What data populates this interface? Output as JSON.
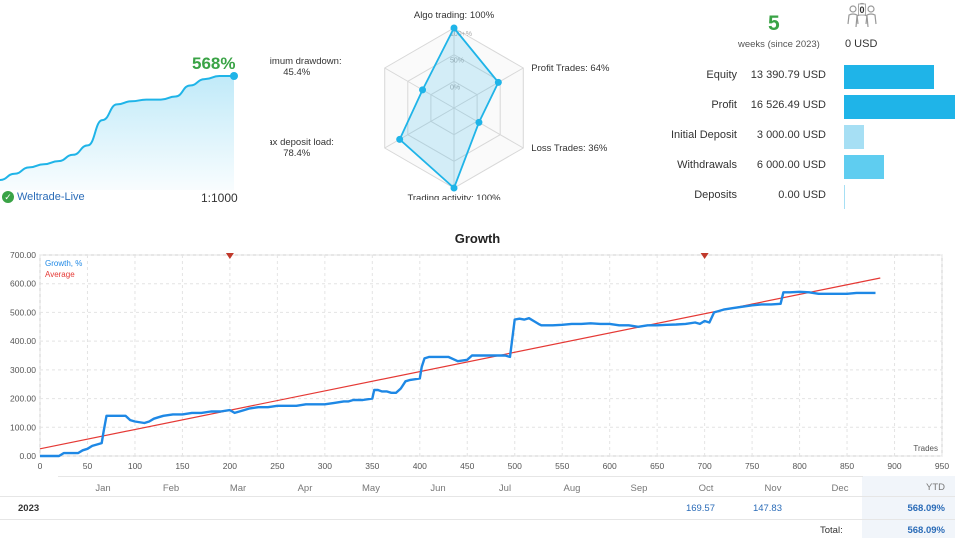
{
  "mini_chart": {
    "growth_label": "568%",
    "account": "Weltrade-Live",
    "leverage": "1:1000",
    "values": [
      0,
      20,
      40,
      50,
      60,
      80,
      110,
      190,
      240,
      250,
      255,
      255,
      265,
      300,
      320,
      330,
      330
    ]
  },
  "radar": {
    "axes": [
      {
        "label": "Algo trading: 100%",
        "value": 100
      },
      {
        "label": "Profit Trades: 64%",
        "value": 64
      },
      {
        "label": "Loss Trades: 36%",
        "value": 36
      },
      {
        "label": "Trading activity: 100%",
        "value": 100
      },
      {
        "label": "Max deposit load:",
        "label2": "78.4%",
        "value": 78.4
      },
      {
        "label": "Maximum drawdown:",
        "label2": "45.4%",
        "value": 45.4
      }
    ],
    "scale_labels": [
      "100+%",
      "50%",
      "0%"
    ]
  },
  "summary": {
    "weeks": "5",
    "weeks_label": "weeks (since 2023)",
    "subscribers_count": "0",
    "subscribers_amount": "0 USD"
  },
  "stats": [
    {
      "label": "Equity",
      "value": "13 390.79 USD",
      "amount": 13390.79,
      "color": "#1fb4e8"
    },
    {
      "label": "Profit",
      "value": "16 526.49 USD",
      "amount": 16526.49,
      "color": "#1fb4e8"
    },
    {
      "label": "Initial Deposit",
      "value": "3 000.00 USD",
      "amount": 3000.0,
      "color": "#a6dff4"
    },
    {
      "label": "Withdrawals",
      "value": "6 000.00 USD",
      "amount": 6000.0,
      "color": "#5fcdf0"
    },
    {
      "label": "Deposits",
      "value": "0.00 USD",
      "amount": 0.0,
      "color": "#a6dff4"
    }
  ],
  "chart_data": {
    "type": "line",
    "title": "Growth",
    "xlabel": "Trades",
    "ylabel": "",
    "xlim": [
      0,
      950
    ],
    "ylim": [
      0,
      700
    ],
    "xticks": [
      0,
      50,
      100,
      150,
      200,
      250,
      300,
      350,
      400,
      450,
      500,
      550,
      600,
      650,
      700,
      750,
      800,
      850,
      900,
      950
    ],
    "yticks": [
      "0.00",
      "100.00",
      "200.00",
      "300.00",
      "400.00",
      "500.00",
      "600.00",
      "700.00"
    ],
    "legend": [
      "Growth, %",
      "Average"
    ],
    "markers_x": [
      200,
      700
    ],
    "series": [
      {
        "name": "Growth, %",
        "color": "#1e88e5",
        "x": [
          0,
          20,
          25,
          40,
          45,
          50,
          55,
          60,
          65,
          67,
          70,
          75,
          90,
          95,
          100,
          110,
          115,
          120,
          125,
          130,
          140,
          150,
          160,
          170,
          180,
          190,
          200,
          205,
          210,
          215,
          220,
          230,
          240,
          250,
          260,
          270,
          280,
          290,
          300,
          310,
          320,
          325,
          330,
          340,
          350,
          352,
          356,
          360,
          365,
          370,
          375,
          380,
          385,
          390,
          400,
          402,
          405,
          410,
          412,
          420,
          430,
          440,
          450,
          455,
          460,
          470,
          480,
          490,
          495,
          500,
          505,
          510,
          515,
          520,
          525,
          528,
          535,
          540,
          550,
          560,
          570,
          580,
          590,
          600,
          610,
          620,
          630,
          640,
          650,
          660,
          670,
          680,
          690,
          695,
          700,
          705,
          710,
          715,
          720,
          730,
          740,
          750,
          760,
          770,
          780,
          783,
          790,
          800,
          810,
          820,
          830,
          840,
          850,
          860,
          870,
          880
        ],
        "y": [
          0,
          0,
          10,
          10,
          20,
          25,
          35,
          40,
          45,
          85,
          140,
          140,
          140,
          125,
          120,
          115,
          120,
          130,
          135,
          140,
          145,
          145,
          150,
          150,
          155,
          155,
          160,
          150,
          155,
          160,
          165,
          170,
          170,
          175,
          175,
          175,
          180,
          180,
          180,
          185,
          190,
          190,
          195,
          195,
          200,
          230,
          230,
          225,
          225,
          220,
          220,
          235,
          260,
          265,
          270,
          310,
          340,
          345,
          345,
          345,
          345,
          330,
          335,
          350,
          350,
          350,
          350,
          350,
          345,
          475,
          478,
          475,
          480,
          470,
          460,
          455,
          455,
          455,
          457,
          460,
          460,
          462,
          460,
          460,
          455,
          455,
          450,
          455,
          455,
          457,
          458,
          460,
          465,
          460,
          470,
          465,
          500,
          505,
          510,
          515,
          520,
          525,
          528,
          528,
          530,
          570,
          570,
          572,
          570,
          565,
          565,
          565,
          565,
          568,
          568,
          568
        ]
      },
      {
        "name": "Average",
        "color": "#e53935",
        "x": [
          0,
          885
        ],
        "y": [
          25,
          620
        ]
      }
    ]
  },
  "calendar": {
    "months": [
      "Jan",
      "Feb",
      "Mar",
      "Apr",
      "May",
      "Jun",
      "Jul",
      "Aug",
      "Sep",
      "Oct",
      "Nov",
      "Dec"
    ],
    "ytd_header": "YTD",
    "year": "2023",
    "values": [
      "",
      "",
      "",
      "",
      "",
      "",
      "",
      "",
      "",
      "169.57",
      "147.83",
      ""
    ],
    "ytd": "568.09%",
    "total_label": "Total:",
    "total": "568.09%"
  }
}
